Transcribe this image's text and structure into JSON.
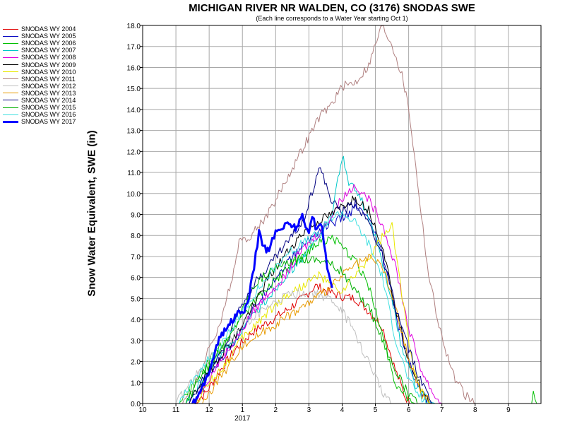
{
  "chart_data": {
    "type": "line",
    "title": "MICHIGAN RIVER NR WALDEN, CO (3176) SNODAS SWE",
    "subtitle": "(Each line corresponds to a Water Year starting Oct 1)",
    "ylabel": "Snow Water Equivalent, SWE (in)",
    "xlabel": "",
    "ylim": [
      0,
      18
    ],
    "xlim": [
      10,
      9.98
    ],
    "x_tick_labels": [
      "10",
      "11",
      "12",
      "1",
      "2",
      "3",
      "4",
      "5",
      "6",
      "7",
      "8",
      "9"
    ],
    "x_sub_label": "2017",
    "y_tick_labels": [
      "0.0",
      "1.0",
      "2.0",
      "3.0",
      "4.0",
      "5.0",
      "6.0",
      "7.0",
      "8.0",
      "9.0",
      "10.0",
      "11.0",
      "12.0",
      "13.0",
      "14.0",
      "15.0",
      "16.0",
      "17.0",
      "18.0"
    ],
    "grid": true,
    "legend_position": "left",
    "series": [
      {
        "name": "SNODAS WY 2004",
        "color": "#e00000",
        "points": [
          [
            11.5,
            0
          ],
          [
            11.9,
            0.5
          ],
          [
            12.3,
            1.5
          ],
          [
            12.8,
            2.6
          ],
          [
            1.3,
            3.4
          ],
          [
            1.8,
            3.9
          ],
          [
            2.3,
            4.4
          ],
          [
            2.8,
            5.0
          ],
          [
            3.2,
            5.6
          ],
          [
            3.6,
            5.3
          ],
          [
            4.0,
            5.1
          ],
          [
            4.4,
            5.0
          ],
          [
            4.8,
            4.4
          ],
          [
            5.2,
            3.7
          ],
          [
            5.6,
            1.6
          ],
          [
            5.9,
            0.3
          ],
          [
            6.1,
            0
          ]
        ]
      },
      {
        "name": "SNODAS WY 2005",
        "color": "#0000c0",
        "points": [
          [
            11.6,
            0
          ],
          [
            12.0,
            1.4
          ],
          [
            12.5,
            2.4
          ],
          [
            12.9,
            3.3
          ],
          [
            1.3,
            4.4
          ],
          [
            1.8,
            5.6
          ],
          [
            2.3,
            6.6
          ],
          [
            2.8,
            7.5
          ],
          [
            3.2,
            8.1
          ],
          [
            3.7,
            8.6
          ],
          [
            4.0,
            8.8
          ],
          [
            4.4,
            9.3
          ],
          [
            4.7,
            9.0
          ],
          [
            5.0,
            8.0
          ],
          [
            5.3,
            6.6
          ],
          [
            5.7,
            3.6
          ],
          [
            6.1,
            1.5
          ],
          [
            6.5,
            0.2
          ],
          [
            6.7,
            0
          ]
        ]
      },
      {
        "name": "SNODAS WY 2006",
        "color": "#00c000",
        "points": [
          [
            11.1,
            0
          ],
          [
            11.6,
            1.0
          ],
          [
            12.0,
            2.0
          ],
          [
            12.5,
            3.1
          ],
          [
            12.9,
            4.0
          ],
          [
            1.3,
            4.8
          ],
          [
            1.8,
            5.6
          ],
          [
            2.3,
            6.3
          ],
          [
            2.8,
            7.0
          ],
          [
            3.2,
            7.6
          ],
          [
            3.7,
            7.9
          ],
          [
            4.0,
            7.4
          ],
          [
            4.4,
            6.8
          ],
          [
            4.8,
            5.6
          ],
          [
            5.2,
            3.3
          ],
          [
            5.6,
            1.0
          ],
          [
            6.0,
            0.1
          ],
          [
            6.2,
            0
          ]
        ]
      },
      {
        "name": "SNODAS WY 2007",
        "color": "#00c8c8",
        "points": [
          [
            11.3,
            0
          ],
          [
            11.8,
            1.1
          ],
          [
            12.3,
            2.3
          ],
          [
            12.8,
            3.1
          ],
          [
            1.3,
            4.1
          ],
          [
            1.8,
            5.1
          ],
          [
            2.3,
            6.1
          ],
          [
            2.8,
            6.9
          ],
          [
            3.3,
            7.9
          ],
          [
            3.7,
            9.1
          ],
          [
            4.0,
            11.8
          ],
          [
            4.2,
            10.6
          ],
          [
            4.6,
            9.6
          ],
          [
            5.0,
            7.9
          ],
          [
            5.4,
            5.6
          ],
          [
            5.8,
            2.6
          ],
          [
            6.2,
            0.9
          ],
          [
            6.6,
            0.1
          ],
          [
            6.8,
            0
          ]
        ]
      },
      {
        "name": "SNODAS WY 2008",
        "color": "#e000e0",
        "points": [
          [
            11.5,
            0
          ],
          [
            11.9,
            1.0
          ],
          [
            12.4,
            2.2
          ],
          [
            12.9,
            3.3
          ],
          [
            1.3,
            4.3
          ],
          [
            1.8,
            5.3
          ],
          [
            2.3,
            6.1
          ],
          [
            2.8,
            7.3
          ],
          [
            3.3,
            8.1
          ],
          [
            3.7,
            9.0
          ],
          [
            4.0,
            9.8
          ],
          [
            4.4,
            10.4
          ],
          [
            4.8,
            9.7
          ],
          [
            5.2,
            8.6
          ],
          [
            5.6,
            6.6
          ],
          [
            6.0,
            3.6
          ],
          [
            6.4,
            1.5
          ],
          [
            6.8,
            0.3
          ],
          [
            7.0,
            0
          ]
        ]
      },
      {
        "name": "SNODAS WY 2009",
        "color": "#000000",
        "points": [
          [
            11.4,
            0
          ],
          [
            11.8,
            1.1
          ],
          [
            12.3,
            2.2
          ],
          [
            12.8,
            3.2
          ],
          [
            1.3,
            4.6
          ],
          [
            1.8,
            6.0
          ],
          [
            2.3,
            7.1
          ],
          [
            2.8,
            8.1
          ],
          [
            3.3,
            8.7
          ],
          [
            3.7,
            9.0
          ],
          [
            4.0,
            9.4
          ],
          [
            4.4,
            9.8
          ],
          [
            4.8,
            9.2
          ],
          [
            5.2,
            7.6
          ],
          [
            5.6,
            4.6
          ],
          [
            6.0,
            2.1
          ],
          [
            6.4,
            0.6
          ],
          [
            6.6,
            0
          ]
        ]
      },
      {
        "name": "SNODAS WY 2010",
        "color": "#e8e800",
        "points": [
          [
            11.6,
            0
          ],
          [
            12.0,
            1.0
          ],
          [
            12.5,
            1.9
          ],
          [
            12.9,
            2.9
          ],
          [
            1.3,
            3.6
          ],
          [
            1.8,
            4.4
          ],
          [
            2.3,
            5.1
          ],
          [
            2.8,
            5.6
          ],
          [
            3.3,
            6.1
          ],
          [
            3.7,
            5.6
          ],
          [
            4.0,
            5.3
          ],
          [
            4.4,
            6.1
          ],
          [
            4.8,
            6.9
          ],
          [
            5.2,
            7.9
          ],
          [
            5.5,
            8.4
          ],
          [
            5.8,
            5.1
          ],
          [
            6.1,
            2.1
          ],
          [
            6.4,
            0.5
          ],
          [
            6.6,
            0
          ]
        ]
      },
      {
        "name": "SNODAS WY 2011",
        "color": "#b08080",
        "points": [
          [
            11.2,
            0
          ],
          [
            11.6,
            1.0
          ],
          [
            12.0,
            2.6
          ],
          [
            12.4,
            4.1
          ],
          [
            12.7,
            6.1
          ],
          [
            12.9,
            7.6
          ],
          [
            1.3,
            8.1
          ],
          [
            1.8,
            9.1
          ],
          [
            2.3,
            10.6
          ],
          [
            2.8,
            12.1
          ],
          [
            3.3,
            13.6
          ],
          [
            3.7,
            14.3
          ],
          [
            4.0,
            15.1
          ],
          [
            4.4,
            15.3
          ],
          [
            4.8,
            16.1
          ],
          [
            5.0,
            17.1
          ],
          [
            5.2,
            18.0
          ],
          [
            5.5,
            17.1
          ],
          [
            5.8,
            15.6
          ],
          [
            6.0,
            14.1
          ],
          [
            6.3,
            10.1
          ],
          [
            6.6,
            6.1
          ],
          [
            7.0,
            3.1
          ],
          [
            7.4,
            1.1
          ],
          [
            7.8,
            0.2
          ],
          [
            8.0,
            0
          ]
        ]
      },
      {
        "name": "SNODAS WY 2012",
        "color": "#c0c0c0",
        "points": [
          [
            11.0,
            0
          ],
          [
            11.5,
            1.1
          ],
          [
            12.0,
            2.1
          ],
          [
            12.5,
            2.9
          ],
          [
            12.9,
            3.6
          ],
          [
            1.3,
            4.1
          ],
          [
            1.8,
            4.6
          ],
          [
            2.3,
            5.1
          ],
          [
            2.8,
            5.3
          ],
          [
            3.3,
            5.2
          ],
          [
            3.7,
            4.9
          ],
          [
            4.0,
            4.4
          ],
          [
            4.3,
            3.6
          ],
          [
            4.6,
            2.6
          ],
          [
            4.9,
            1.6
          ],
          [
            5.2,
            0.6
          ],
          [
            5.5,
            0
          ]
        ]
      },
      {
        "name": "SNODAS WY 2013",
        "color": "#e89a00",
        "points": [
          [
            11.8,
            0
          ],
          [
            12.2,
            1.0
          ],
          [
            12.6,
            1.8
          ],
          [
            12.9,
            2.6
          ],
          [
            1.3,
            3.1
          ],
          [
            1.8,
            3.6
          ],
          [
            2.3,
            4.1
          ],
          [
            2.8,
            4.6
          ],
          [
            3.3,
            5.1
          ],
          [
            3.7,
            5.6
          ],
          [
            4.0,
            6.1
          ],
          [
            4.4,
            6.6
          ],
          [
            4.8,
            6.9
          ],
          [
            5.2,
            6.6
          ],
          [
            5.6,
            4.6
          ],
          [
            6.0,
            2.1
          ],
          [
            6.4,
            0.4
          ],
          [
            6.7,
            0
          ]
        ]
      },
      {
        "name": "SNODAS WY 2014",
        "color": "#000080",
        "points": [
          [
            11.4,
            0
          ],
          [
            11.8,
            1.1
          ],
          [
            12.2,
            2.1
          ],
          [
            12.6,
            3.1
          ],
          [
            12.9,
            4.6
          ],
          [
            1.3,
            5.6
          ],
          [
            1.8,
            6.6
          ],
          [
            2.3,
            7.6
          ],
          [
            2.8,
            8.6
          ],
          [
            3.1,
            10.1
          ],
          [
            3.3,
            11.3
          ],
          [
            3.7,
            9.6
          ],
          [
            4.0,
            9.1
          ],
          [
            4.4,
            9.6
          ],
          [
            4.8,
            8.6
          ],
          [
            5.2,
            7.1
          ],
          [
            5.6,
            4.6
          ],
          [
            6.0,
            2.6
          ],
          [
            6.4,
            0.9
          ],
          [
            6.8,
            0
          ]
        ]
      },
      {
        "name": "SNODAS WY 2015",
        "color": "#00b000",
        "points": [
          [
            11.3,
            0
          ],
          [
            11.7,
            1.1
          ],
          [
            12.1,
            2.1
          ],
          [
            12.6,
            3.1
          ],
          [
            12.9,
            4.1
          ],
          [
            1.3,
            5.6
          ],
          [
            1.8,
            6.3
          ],
          [
            2.3,
            6.6
          ],
          [
            2.8,
            6.9
          ],
          [
            3.3,
            6.9
          ],
          [
            3.7,
            6.6
          ],
          [
            4.0,
            6.3
          ],
          [
            4.4,
            5.3
          ],
          [
            4.8,
            4.6
          ],
          [
            5.2,
            3.1
          ],
          [
            5.6,
            1.6
          ],
          [
            6.0,
            0.4
          ],
          [
            6.3,
            0
          ]
        ]
      },
      {
        "name": "SNODAS WY 2016",
        "color": "#40e0e0",
        "points": [
          [
            11.1,
            0
          ],
          [
            11.5,
            1.1
          ],
          [
            12.0,
            2.1
          ],
          [
            12.5,
            3.1
          ],
          [
            12.9,
            4.1
          ],
          [
            1.3,
            5.1
          ],
          [
            1.8,
            6.1
          ],
          [
            2.3,
            7.1
          ],
          [
            2.8,
            7.6
          ],
          [
            3.3,
            8.1
          ],
          [
            3.7,
            8.9
          ],
          [
            4.0,
            9.1
          ],
          [
            4.4,
            8.6
          ],
          [
            4.8,
            7.6
          ],
          [
            5.2,
            6.1
          ],
          [
            5.6,
            3.1
          ],
          [
            6.0,
            1.1
          ],
          [
            6.4,
            0.2
          ],
          [
            6.6,
            0
          ]
        ]
      },
      {
        "name": "SNODAS WY 2017",
        "color": "#0000ff",
        "bold": true,
        "points": [
          [
            11.5,
            0
          ],
          [
            11.7,
            0.4
          ],
          [
            11.9,
            1.1
          ],
          [
            12.1,
            2.1
          ],
          [
            12.3,
            3.1
          ],
          [
            12.5,
            3.5
          ],
          [
            12.7,
            4.0
          ],
          [
            12.9,
            4.3
          ],
          [
            1.1,
            4.5
          ],
          [
            1.2,
            5.1
          ],
          [
            1.3,
            6.0
          ],
          [
            1.4,
            7.1
          ],
          [
            1.5,
            8.1
          ],
          [
            1.6,
            7.6
          ],
          [
            1.8,
            7.2
          ],
          [
            1.9,
            7.8
          ],
          [
            2.0,
            8.2
          ],
          [
            2.2,
            8.4
          ],
          [
            2.4,
            8.6
          ],
          [
            2.6,
            8.4
          ],
          [
            2.8,
            8.9
          ],
          [
            2.9,
            8.4
          ],
          [
            3.0,
            8.2
          ],
          [
            3.1,
            8.9
          ],
          [
            3.2,
            8.4
          ],
          [
            3.3,
            8.6
          ],
          [
            3.4,
            8.3
          ],
          [
            3.5,
            7.1
          ],
          [
            3.6,
            6.1
          ],
          [
            3.7,
            5.5
          ]
        ]
      }
    ]
  }
}
